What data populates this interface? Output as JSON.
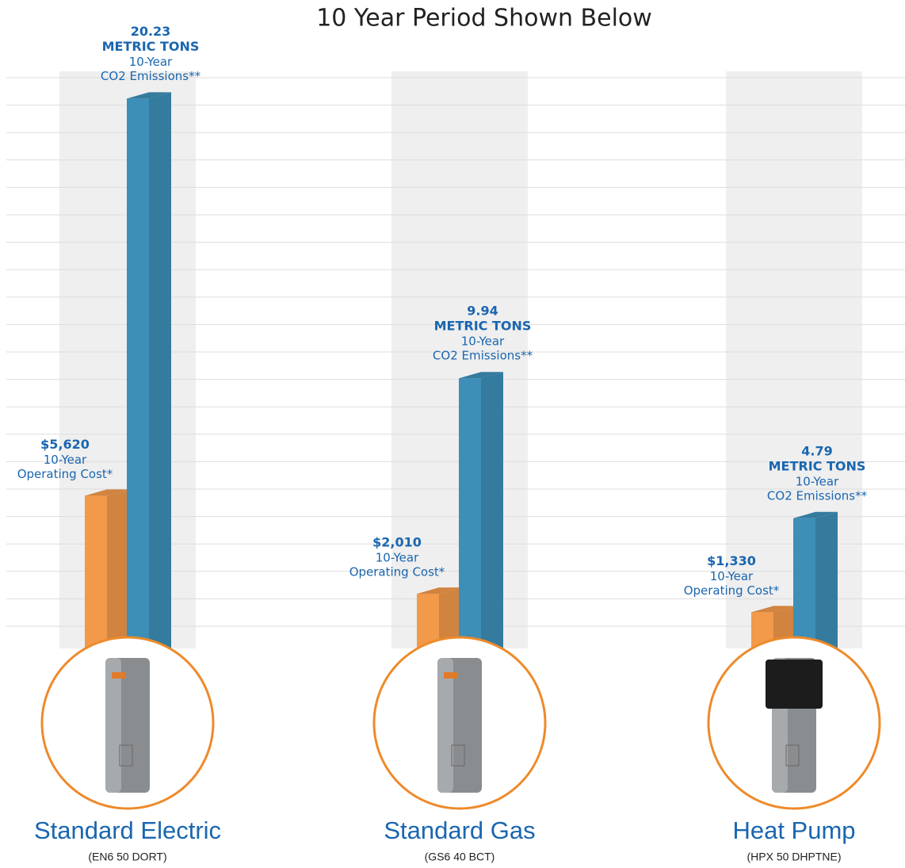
{
  "chart_data": {
    "type": "bar3d",
    "title": "10 Year Period Shown Below",
    "categories": [
      "Standard Electric",
      "Standard Gas",
      "Heat Pump"
    ],
    "models": [
      "(EN6 50 DORT)",
      "(GS6 40 BCT)",
      "(HPX 50 DHPTNE)"
    ],
    "ylim": [
      0,
      21000
    ],
    "y2lim": [
      0,
      21
    ],
    "series": [
      {
        "color": "#f2994a",
        "values": [
          5620,
          2010,
          1330
        ],
        "value_labels": [
          "$5,620",
          "$2,010",
          "$1,330"
        ],
        "caption": [
          "10-Year",
          "Operating Cost*"
        ]
      },
      {
        "color": "#3d8fb8",
        "axis": "y2",
        "values": [
          20.23,
          9.94,
          4.79
        ],
        "unit": "METRIC TONS",
        "caption": [
          "10-Year",
          "CO2 Emissions**"
        ]
      }
    ]
  }
}
